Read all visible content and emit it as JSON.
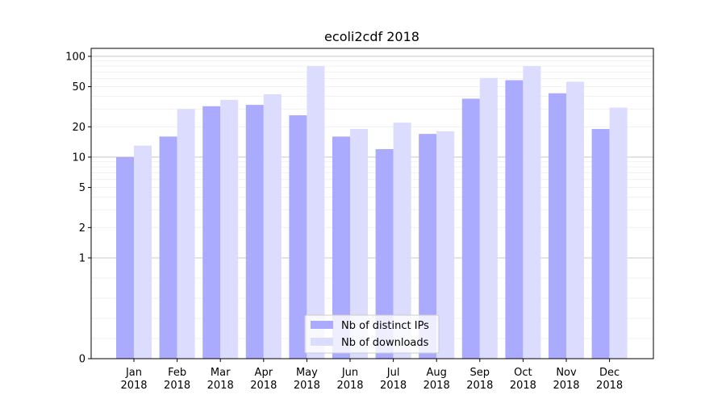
{
  "chart_data": {
    "type": "bar",
    "title": "ecoli2cdf 2018",
    "xlabel": "",
    "ylabel": "",
    "categories": [
      [
        "Jan",
        "2018"
      ],
      [
        "Feb",
        "2018"
      ],
      [
        "Mar",
        "2018"
      ],
      [
        "Apr",
        "2018"
      ],
      [
        "May",
        "2018"
      ],
      [
        "Jun",
        "2018"
      ],
      [
        "Jul",
        "2018"
      ],
      [
        "Aug",
        "2018"
      ],
      [
        "Sep",
        "2018"
      ],
      [
        "Oct",
        "2018"
      ],
      [
        "Nov",
        "2018"
      ],
      [
        "Dec",
        "2018"
      ]
    ],
    "series": [
      {
        "name": "Nb of distinct IPs",
        "color": "#aaaaff",
        "values": [
          10,
          16,
          32,
          33,
          26,
          16,
          12,
          17,
          38,
          58,
          43,
          19
        ]
      },
      {
        "name": "Nb of downloads",
        "color": "#dcdcff",
        "values": [
          13,
          30,
          37,
          42,
          80,
          19,
          22,
          18,
          61,
          80,
          56,
          31
        ]
      }
    ],
    "yscale": "symlog",
    "ylim": [
      0,
      120
    ],
    "yticks": [
      0,
      1,
      2,
      5,
      10,
      20,
      50,
      100
    ],
    "ytick_labels": [
      "0",
      "1",
      "2",
      "5",
      "10",
      "20",
      "50",
      "100"
    ],
    "grid": true,
    "legend_position": "lower center"
  }
}
